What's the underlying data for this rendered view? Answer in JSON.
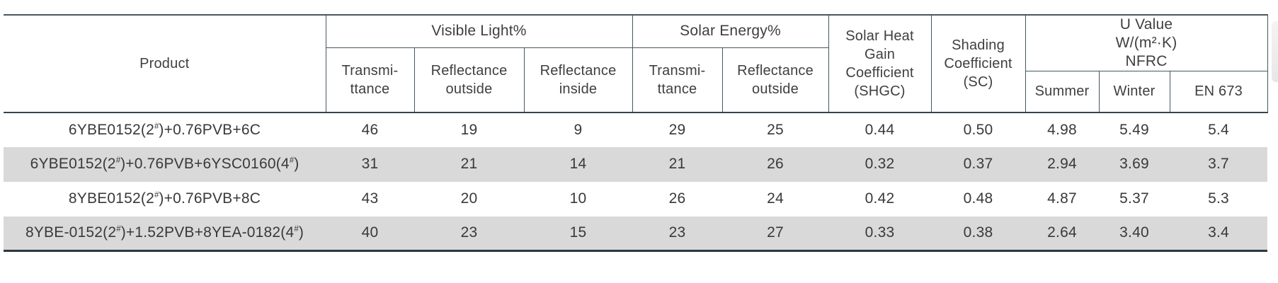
{
  "table": {
    "header": {
      "product": "Product",
      "visible_light": {
        "label": "Visible Light%",
        "cols": [
          "Transmi-\nttance",
          "Reflectance\noutside",
          "Reflectance\ninside"
        ]
      },
      "solar_energy": {
        "label": "Solar Energy%",
        "cols": [
          "Transmi-\nttance",
          "Reflectance\noutside"
        ]
      },
      "shgc": "Solar Heat\nGain\nCoefficient\n(SHGC)",
      "sc": "Shading\nCoefficient\n(SC)",
      "u_value": {
        "label": "U Value\nW/(m²·K)\nNFRC",
        "cols": [
          "Summer",
          "Winter",
          "EN 673"
        ]
      }
    },
    "rows": [
      {
        "product": "6YBE0152(2#)+0.76PVB+6C",
        "values": [
          "46",
          "19",
          "9",
          "29",
          "25",
          "0.44",
          "0.50",
          "4.98",
          "5.49",
          "5.4"
        ]
      },
      {
        "product": "6YBE0152(2#)+0.76PVB+6YSC0160(4#)",
        "values": [
          "31",
          "21",
          "14",
          "21",
          "26",
          "0.32",
          "0.37",
          "2.94",
          "3.69",
          "3.7"
        ]
      },
      {
        "product": "8YBE0152(2#)+0.76PVB+8C",
        "values": [
          "43",
          "20",
          "10",
          "26",
          "24",
          "0.42",
          "0.48",
          "4.87",
          "5.37",
          "5.3"
        ]
      },
      {
        "product": "8YBE-0152(2#)+1.52PVB+8YEA-0182(4#)",
        "values": [
          "40",
          "23",
          "15",
          "23",
          "27",
          "0.33",
          "0.38",
          "2.64",
          "3.40",
          "3.4"
        ]
      }
    ]
  },
  "chart_data": {
    "type": "table",
    "title": "",
    "columns": [
      "Product",
      "Visible Light% Transmittance",
      "Visible Light% Reflectance outside",
      "Visible Light% Reflectance inside",
      "Solar Energy% Transmittance",
      "Solar Energy% Reflectance outside",
      "Solar Heat Gain Coefficient (SHGC)",
      "Shading Coefficient (SC)",
      "U Value Summer",
      "U Value Winter",
      "U Value EN 673"
    ],
    "rows": [
      [
        "6YBE0152(2#)+0.76PVB+6C",
        46,
        19,
        9,
        29,
        25,
        0.44,
        0.5,
        4.98,
        5.49,
        5.4
      ],
      [
        "6YBE0152(2#)+0.76PVB+6YSC0160(4#)",
        31,
        21,
        14,
        21,
        26,
        0.32,
        0.37,
        2.94,
        3.69,
        3.7
      ],
      [
        "8YBE0152(2#)+0.76PVB+8C",
        43,
        20,
        10,
        26,
        24,
        0.42,
        0.48,
        4.87,
        5.37,
        5.3
      ],
      [
        "8YBE-0152(2#)+1.52PVB+8YEA-0182(4#)",
        40,
        23,
        15,
        23,
        27,
        0.33,
        0.38,
        2.64,
        3.4,
        3.4
      ]
    ]
  },
  "colors": {
    "border": "#46575f",
    "border_bottom": "#2b3941",
    "row_stripe": "#d9d9d9",
    "text": "#3c3c3c",
    "background": "#ffffff"
  }
}
